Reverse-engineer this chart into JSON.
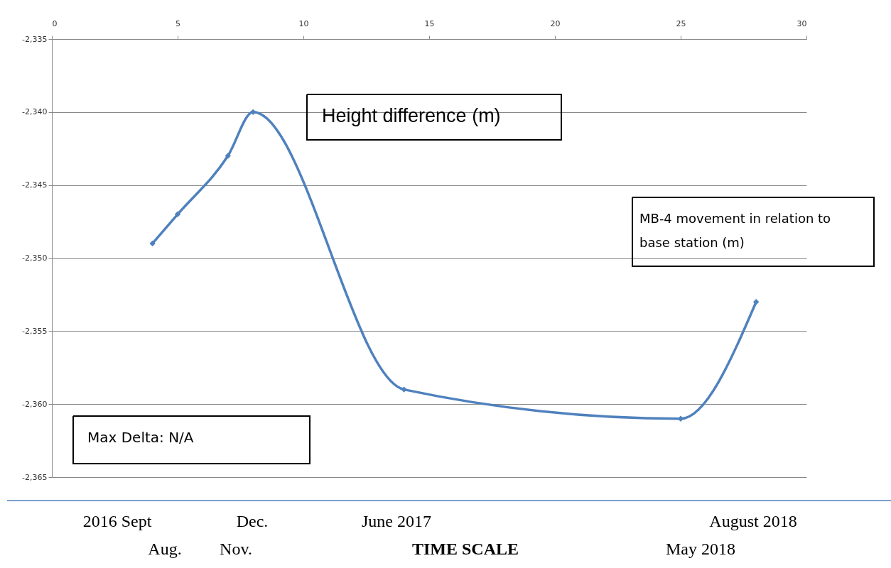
{
  "chart_data": {
    "type": "line",
    "title": "Height difference (m)",
    "xlabel": "TIME  SCALE",
    "x": [
      4,
      5,
      7,
      8,
      14,
      25,
      28
    ],
    "series": [
      {
        "color": "#4f81bd",
        "values": [
          -2349,
          -2347,
          -2343,
          -2340,
          -2359,
          -2361,
          -2353
        ]
      }
    ],
    "xlim": [
      0,
      30
    ],
    "xticks": [
      0,
      5,
      10,
      15,
      20,
      25,
      30
    ],
    "ylim": [
      -2365,
      -2335
    ],
    "yticks": [
      {
        "value": -2365,
        "label": "-2,365"
      },
      {
        "value": -2360,
        "label": "-2,360"
      },
      {
        "value": -2355,
        "label": "-2,355"
      },
      {
        "value": -2350,
        "label": "-2,350"
      },
      {
        "value": -2345,
        "label": "-2,345"
      },
      {
        "value": -2340,
        "label": "-2,340"
      },
      {
        "value": -2335,
        "label": "-2,335"
      }
    ],
    "grid": "y",
    "marker": "diamond",
    "line_style": "solid",
    "annotations": [
      "MB-4 movement in relation to base station (m)",
      "Max Delta: N/A",
      "2016 Sept",
      "Dec.",
      "June 2017",
      "August 2018",
      "Aug.",
      "Nov.",
      "May 2018"
    ]
  }
}
